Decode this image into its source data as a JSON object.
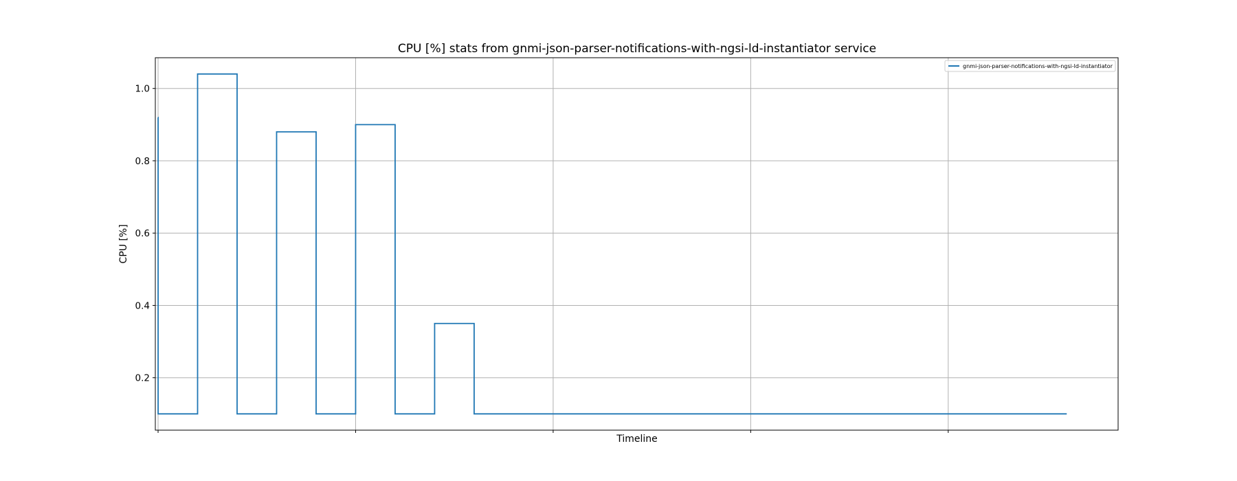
{
  "chart_data": {
    "type": "line",
    "title": "CPU [%] stats from gnmi-json-parser-notifications-with-ngsi-ld-instantiator service",
    "xlabel": "Timeline",
    "ylabel": "CPU [%]",
    "ylim": [
      0.055,
      1.085
    ],
    "yticks": [
      0.2,
      0.4,
      0.6,
      0.8,
      1.0
    ],
    "ytick_labels": [
      "0.2",
      "0.4",
      "0.6",
      "0.8",
      "1.0"
    ],
    "grid": true,
    "legend_position": "top-right",
    "step": "post",
    "series": [
      {
        "name": "gnmi-json-parser-notifications-with-ngsi-ld-instantiator",
        "color": "#1f77b4",
        "x": [
          0,
          0.001,
          1,
          2,
          3,
          4,
          5,
          6,
          7,
          8,
          23
        ],
        "y": [
          0.92,
          0.1,
          1.04,
          0.1,
          0.88,
          0.1,
          0.9,
          0.1,
          0.35,
          0.1,
          0.1
        ]
      }
    ]
  }
}
